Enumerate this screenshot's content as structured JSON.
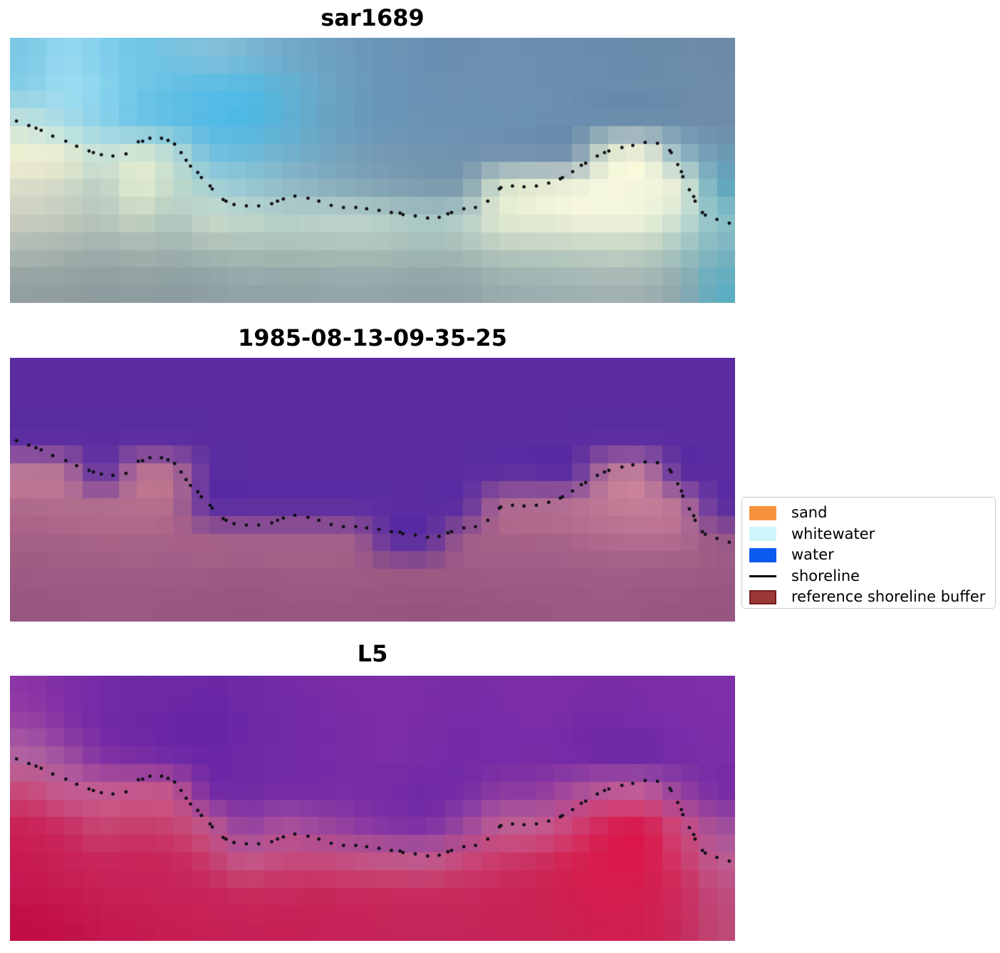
{
  "chart_data": {
    "type": "heatmap",
    "panels": [
      {
        "title": "sar1689",
        "grid": [
          [
            "#7CC9E6",
            "#94D8F0",
            "#83D0EC",
            "#6FC5E6",
            "#77C3E0",
            "#82C0DA",
            "#7CB8D4",
            "#73ABCA",
            "#6FA2C2",
            "#6C9ABA",
            "#6A94B5",
            "#6990B2",
            "#6A8FB1",
            "#6B90B2",
            "#6A8FB0",
            "#698DAE",
            "#688CAC",
            "#698CAB",
            "#6B8CAA",
            "#6D8BA8"
          ],
          [
            "#85CEE6",
            "#9FDEF2",
            "#8CD5EE",
            "#71C7E8",
            "#65C0E4",
            "#5BBDE5",
            "#55BAE4",
            "#60B3D6",
            "#6BA8C8",
            "#6A9CBE",
            "#6A95B7",
            "#6A91B3",
            "#6B90B2",
            "#6C91B3",
            "#6B90B1",
            "#6A8EAF",
            "#698DAD",
            "#6A8DAC",
            "#6C8DAB",
            "#6E8CA9"
          ],
          [
            "#BFE0DC",
            "#A5DCE8",
            "#8AD2EA",
            "#6CC4E6",
            "#5FBEE4",
            "#52BAE6",
            "#4CB8E5",
            "#5AB1D6",
            "#68A7C8",
            "#699CBE",
            "#6A96B7",
            "#6A92B3",
            "#6B91B2",
            "#6C92B3",
            "#6B90B1",
            "#6A8EAF",
            "#698DAD",
            "#6A8DAC",
            "#6C8DAB",
            "#6E8CA9"
          ],
          [
            "#F1F1D3",
            "#E9EED1",
            "#C8E2D8",
            "#D9E8D2",
            "#BCDCD4",
            "#74C0DE",
            "#70BCDA",
            "#72B2CE",
            "#73A9C4",
            "#749FBA",
            "#7499B4",
            "#7295B1",
            "#7294B0",
            "#7191AF",
            "#7090AE",
            "#7290AC",
            "#E3EBD0",
            "#F2F3D9",
            "#8FB6C4",
            "#6E9BB4"
          ],
          [
            "#D9DCC8",
            "#CFD8C6",
            "#BACFC4",
            "#E5ECD0",
            "#C3DACA",
            "#A7D2D6",
            "#97C8D4",
            "#92BCC8",
            "#8CB1C0",
            "#85A8B8",
            "#7FA0B2",
            "#7A9AAE",
            "#7D9BAE",
            "#D8E4CC",
            "#E8EED2",
            "#F2F4DA",
            "#F7F8DF",
            "#F4F6DC",
            "#E8EFD6",
            "#64A8BE"
          ],
          [
            "#C9CEC0",
            "#C2CABE",
            "#B4C4BC",
            "#C3D2C2",
            "#AFC6BE",
            "#C8DACA",
            "#C2D8CC",
            "#B8D2C8",
            "#BCD4CA",
            "#BED6CC",
            "#B6D0C8",
            "#AACAC6",
            "#B8D2CA",
            "#E2EAD2",
            "#E6ECD4",
            "#EEF2D8",
            "#EFF3D9",
            "#EDF2D8",
            "#C8DED2",
            "#8CC2C8"
          ],
          [
            "#A9B4AE",
            "#A4B1AC",
            "#9CACA9",
            "#A3B2AE",
            "#9DAFAC",
            "#A2B5B0",
            "#A6BAB4",
            "#A3B8B2",
            "#A5BAB4",
            "#A8BCB6",
            "#A5BAB4",
            "#9FB6B2",
            "#A4B9B4",
            "#B2C6BC",
            "#B6C9BE",
            "#BACCC0",
            "#BECFC2",
            "#BACCC0",
            "#9EC0BC",
            "#79B2BE"
          ],
          [
            "#93A0A2",
            "#909EA0",
            "#8C9B9E",
            "#8F9EA0",
            "#8C9CA0",
            "#8FA0A4",
            "#93A4A8",
            "#91A3A6",
            "#93A5A8",
            "#95A7AA",
            "#93A5A8",
            "#8FA2A6",
            "#92A4A8",
            "#9AACAE",
            "#9DAFB0",
            "#A0B1B2",
            "#A3B3B4",
            "#A0B1B2",
            "#8DA8AE",
            "#5FAEC2"
          ]
        ]
      },
      {
        "title": "1985-08-13-09-35-25",
        "grid": [
          [
            "#5B2DA1",
            "#5B2DA1",
            "#5B2DA1",
            "#5B2DA1",
            "#5B2DA1",
            "#5B2DA1",
            "#5B2DA1",
            "#5B2DA1",
            "#5B2DA1",
            "#5B2DA1",
            "#5B2DA1",
            "#5B2DA1",
            "#5B2DA1",
            "#5B2DA1",
            "#5B2DA1",
            "#5B2DA1",
            "#5B2DA1",
            "#5B2DA1",
            "#5B2DA1",
            "#5B2DA1"
          ],
          [
            "#5B2DA1",
            "#5B2DA1",
            "#5B2DA1",
            "#5B2DA1",
            "#5B2DA1",
            "#5B2DA1",
            "#5B2DA1",
            "#5B2DA1",
            "#5B2DA1",
            "#5B2DA1",
            "#5B2DA1",
            "#5B2DA1",
            "#5B2DA1",
            "#5B2DA1",
            "#5B2DA1",
            "#5B2DA1",
            "#5B2DA1",
            "#5B2DA1",
            "#5B2DA1",
            "#5B2DA1"
          ],
          [
            "#5B2DA1",
            "#5B2DA1",
            "#5B2DA1",
            "#5B2DA1",
            "#5B2DA1",
            "#5B2DA1",
            "#5B2DA1",
            "#5B2DA1",
            "#5B2DA1",
            "#5B2DA1",
            "#5B2DA1",
            "#5B2DA1",
            "#5B2DA1",
            "#5B2DA1",
            "#5B2DA1",
            "#5B2DA1",
            "#5B2DA1",
            "#5B2DA1",
            "#5B2DA1",
            "#5B2DA1"
          ],
          [
            "#C07C98",
            "#BD7795",
            "#5B2DA1",
            "#BC7593",
            "#BA7392",
            "#5B2DA1",
            "#5B2DA1",
            "#5B2DA1",
            "#5B2DA1",
            "#5B2DA1",
            "#5B2DA1",
            "#5B2DA1",
            "#5B2DA1",
            "#5B2DA1",
            "#5B2DA1",
            "#5B2DA1",
            "#BF7A96",
            "#C37E99",
            "#5B2DA1",
            "#5B2DA1"
          ],
          [
            "#AE6A8C",
            "#B26D8E",
            "#B4708F",
            "#B56F8E",
            "#B26C8C",
            "#5B2DA1",
            "#5B2DA1",
            "#5B2DA1",
            "#5B2DA1",
            "#5B2DA1",
            "#5B2DA1",
            "#5B2DA1",
            "#5B2DA1",
            "#B06B90",
            "#B36D90",
            "#B87293",
            "#C17B95",
            "#C67F99",
            "#BB7595",
            "#5B2DA1"
          ],
          [
            "#A56085",
            "#A76286",
            "#A86387",
            "#AA6488",
            "#A86287",
            "#A96389",
            "#A5618A",
            "#A86289",
            "#A66189",
            "#A35F89",
            "#5B2DA1",
            "#5B2DA1",
            "#A05D87",
            "#A66188",
            "#A86289",
            "#AA6489",
            "#B26B8D",
            "#B56D8F",
            "#B06A8D",
            "#9A5A86"
          ],
          [
            "#9D5B84",
            "#9E5C84",
            "#9E5C85",
            "#9F5D85",
            "#9E5C85",
            "#9D5B84",
            "#9C5A84",
            "#9D5B84",
            "#9E5C85",
            "#9D5B85",
            "#9C5A84",
            "#9B5984",
            "#9C5A84",
            "#9D5B85",
            "#9E5C85",
            "#9F5D86",
            "#A05E86",
            "#9F5D86",
            "#9D5C85",
            "#9B5A84"
          ],
          [
            "#985780",
            "#995881",
            "#9A5981",
            "#9A5982",
            "#995881",
            "#985780",
            "#97567F",
            "#985781",
            "#995882",
            "#985781",
            "#975680",
            "#96557F",
            "#975680",
            "#985781",
            "#995882",
            "#9A5982",
            "#9A5A83",
            "#995982",
            "#985781",
            "#965680"
          ]
        ]
      },
      {
        "title": "L5",
        "grid": [
          [
            "#8C35A6",
            "#7E2DA4",
            "#752BA6",
            "#6F28A4",
            "#7029A6",
            "#6B27A5",
            "#7029A6",
            "#742BA7",
            "#782CA6",
            "#7A2DA6",
            "#7C2EA7",
            "#7A2DA6",
            "#782CA6",
            "#7A2DA7",
            "#7C2EA7",
            "#7A2DA6",
            "#782CA6",
            "#7A2DA7",
            "#7C2EA8",
            "#7E30A8"
          ],
          [
            "#9A45A2",
            "#8434A4",
            "#742AA6",
            "#6C27A4",
            "#6825A4",
            "#6525A6",
            "#6B27A6",
            "#712AA6",
            "#762BA6",
            "#782CA6",
            "#7A2DA6",
            "#782CA6",
            "#762BA6",
            "#782CA7",
            "#7A2DA7",
            "#762BA6",
            "#742AA6",
            "#762BA7",
            "#7A2DA8",
            "#7C2FA8"
          ],
          [
            "#B266A0",
            "#A053A0",
            "#8434A2",
            "#7A2EA4",
            "#702AA6",
            "#6A27A6",
            "#7029A6",
            "#742BA6",
            "#762BA6",
            "#782CA6",
            "#7A2DA6",
            "#772CA6",
            "#742BA6",
            "#762BA7",
            "#782DA7",
            "#742BA6",
            "#6E28A4",
            "#6C28A4",
            "#762CA6",
            "#7A2EA7"
          ],
          [
            "#C84A77",
            "#C55F92",
            "#C55F92",
            "#C95C8C",
            "#C6598C",
            "#742BA5",
            "#712AA4",
            "#742BA5",
            "#762CA5",
            "#782DA6",
            "#742BA5",
            "#712AA4",
            "#742BA5",
            "#8C3AA0",
            "#8C3AA0",
            "#A94E9B",
            "#C05F97",
            "#C4629A",
            "#9343A0",
            "#772CA4"
          ],
          [
            "#CA2257",
            "#C92E63",
            "#C74875",
            "#C73E6E",
            "#C74673",
            "#C05C90",
            "#8E3FA2",
            "#A9529C",
            "#9A48A0",
            "#8C3BA2",
            "#7E31A4",
            "#7A2EA4",
            "#9747A0",
            "#BE6094",
            "#C16195",
            "#CC4679",
            "#D62055",
            "#D81B50",
            "#CA4E80",
            "#A04E9D"
          ],
          [
            "#C81C52",
            "#C92257",
            "#C8285C",
            "#C82459",
            "#C8285C",
            "#C63E6D",
            "#C25D8F",
            "#C54F7F",
            "#C54E7E",
            "#C35787",
            "#C15C8D",
            "#BE5F92",
            "#C64C7C",
            "#CA3A6B",
            "#CC3264",
            "#D42351",
            "#DA1A4C",
            "#DA184A",
            "#CE3A6B",
            "#BC5E93"
          ],
          [
            "#C5164E",
            "#C61A51",
            "#C72055",
            "#C72257",
            "#C82459",
            "#C8265A",
            "#C82C5E",
            "#C82A5D",
            "#C8285B",
            "#C82A5C",
            "#C82C5E",
            "#C82E60",
            "#C82A5C",
            "#C92659",
            "#CA2254",
            "#D01E4F",
            "#D61C4D",
            "#D41E4F",
            "#CC2A5C",
            "#C04C7F"
          ],
          [
            "#C00E44",
            "#C21248",
            "#C4184D",
            "#C51A50",
            "#C61E53",
            "#C62055",
            "#C62257",
            "#C62055",
            "#C62257",
            "#C62459",
            "#C62659",
            "#C6285B",
            "#C6265A",
            "#C72458",
            "#C82255",
            "#CC2051",
            "#D01E4E",
            "#CE2050",
            "#C82A5B",
            "#BE4876"
          ]
        ]
      }
    ],
    "shoreline": {
      "color": "#0E0E14",
      "points": [
        [
          0.009,
          0.314
        ],
        [
          0.026,
          0.331
        ],
        [
          0.036,
          0.341
        ],
        [
          0.043,
          0.349
        ],
        [
          0.059,
          0.371
        ],
        [
          0.077,
          0.39
        ],
        [
          0.092,
          0.409
        ],
        [
          0.109,
          0.427
        ],
        [
          0.115,
          0.433
        ],
        [
          0.126,
          0.441
        ],
        [
          0.142,
          0.446
        ],
        [
          0.16,
          0.438
        ],
        [
          0.177,
          0.392
        ],
        [
          0.183,
          0.39
        ],
        [
          0.193,
          0.379
        ],
        [
          0.209,
          0.379
        ],
        [
          0.218,
          0.387
        ],
        [
          0.227,
          0.401
        ],
        [
          0.236,
          0.433
        ],
        [
          0.243,
          0.462
        ],
        [
          0.249,
          0.484
        ],
        [
          0.259,
          0.508
        ],
        [
          0.264,
          0.527
        ],
        [
          0.276,
          0.559
        ],
        [
          0.279,
          0.57
        ],
        [
          0.294,
          0.61
        ],
        [
          0.298,
          0.616
        ],
        [
          0.309,
          0.629
        ],
        [
          0.326,
          0.634
        ],
        [
          0.343,
          0.634
        ],
        [
          0.361,
          0.626
        ],
        [
          0.369,
          0.616
        ],
        [
          0.377,
          0.608
        ],
        [
          0.393,
          0.597
        ],
        [
          0.411,
          0.605
        ],
        [
          0.426,
          0.616
        ],
        [
          0.443,
          0.632
        ],
        [
          0.46,
          0.64
        ],
        [
          0.477,
          0.64
        ],
        [
          0.492,
          0.645
        ],
        [
          0.509,
          0.651
        ],
        [
          0.526,
          0.659
        ],
        [
          0.538,
          0.661
        ],
        [
          0.542,
          0.667
        ],
        [
          0.559,
          0.672
        ],
        [
          0.576,
          0.68
        ],
        [
          0.592,
          0.677
        ],
        [
          0.604,
          0.664
        ],
        [
          0.609,
          0.659
        ],
        [
          0.626,
          0.645
        ],
        [
          0.642,
          0.64
        ],
        [
          0.659,
          0.616
        ],
        [
          0.675,
          0.57
        ],
        [
          0.677,
          0.565
        ],
        [
          0.693,
          0.559
        ],
        [
          0.709,
          0.562
        ],
        [
          0.726,
          0.559
        ],
        [
          0.743,
          0.548
        ],
        [
          0.759,
          0.532
        ],
        [
          0.762,
          0.527
        ],
        [
          0.776,
          0.505
        ],
        [
          0.788,
          0.481
        ],
        [
          0.794,
          0.473
        ],
        [
          0.81,
          0.446
        ],
        [
          0.82,
          0.433
        ],
        [
          0.826,
          0.427
        ],
        [
          0.844,
          0.414
        ],
        [
          0.859,
          0.406
        ],
        [
          0.876,
          0.395
        ],
        [
          0.893,
          0.398
        ],
        [
          0.91,
          0.425
        ],
        [
          0.912,
          0.433
        ],
        [
          0.921,
          0.478
        ],
        [
          0.926,
          0.505
        ],
        [
          0.928,
          0.524
        ],
        [
          0.937,
          0.573
        ],
        [
          0.943,
          0.599
        ],
        [
          0.945,
          0.616
        ],
        [
          0.955,
          0.659
        ],
        [
          0.959,
          0.669
        ],
        [
          0.975,
          0.685
        ],
        [
          0.992,
          0.699
        ]
      ]
    },
    "legend": {
      "position": "center right",
      "items": [
        {
          "label": "sand",
          "marker": "patch",
          "color": "#F6913D"
        },
        {
          "label": "whitewater",
          "marker": "patch",
          "color": "#CFF6FC"
        },
        {
          "label": "water",
          "marker": "patch",
          "color": "#0B5BF0"
        },
        {
          "label": "shoreline",
          "marker": "line",
          "color": "#000000"
        },
        {
          "label": "reference shoreline buffer",
          "marker": "patch",
          "color": "#9C3836",
          "border_color": "#701F1D"
        }
      ]
    }
  }
}
